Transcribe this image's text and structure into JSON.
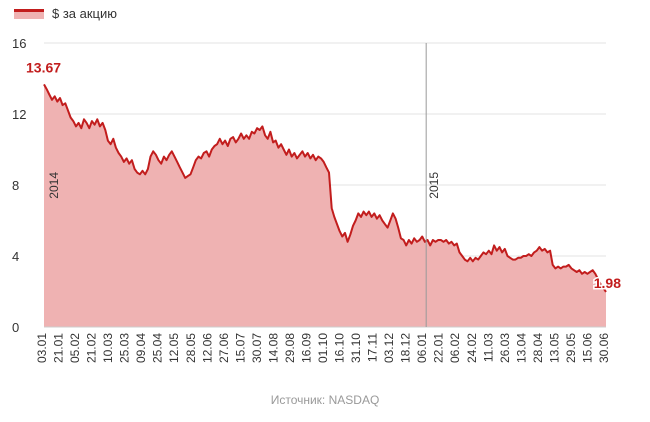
{
  "legend": {
    "label": "$ за акцию"
  },
  "source_label": "Источник: NASDAQ",
  "colors": {
    "line": "#c21d1d",
    "area": "#efb2b2",
    "grid": "#e3e3e3",
    "axis": "#333333",
    "separator": "#999999"
  },
  "chart_data": {
    "type": "area",
    "title": "",
    "xlabel": "",
    "ylabel": "",
    "ylim": [
      0,
      16
    ],
    "yticks": [
      0,
      4,
      8,
      12,
      16
    ],
    "grid": true,
    "legend_position": "top-left",
    "series": [
      {
        "name": "$ за акцию"
      }
    ],
    "x_tick_labels": [
      "03.01",
      "21.01",
      "05.02",
      "21.02",
      "10.03",
      "25.03",
      "09.04",
      "25.04",
      "12.05",
      "28.05",
      "12.06",
      "27.06",
      "15.07",
      "30.07",
      "14.08",
      "29.08",
      "16.09",
      "01.10",
      "16.10",
      "31.10",
      "17.11",
      "03.12",
      "18.12",
      "06.01",
      "22.01",
      "06.02",
      "24.02",
      "11.03",
      "26.03",
      "13.04",
      "28.04",
      "13.05",
      "29.05",
      "15.06",
      "30.06"
    ],
    "year_markers": [
      {
        "label": "2014",
        "at_tick": "03.01"
      },
      {
        "label": "2015",
        "at_tick": "06.01"
      }
    ],
    "annotations": [
      {
        "label": "13.67",
        "value": 13.67,
        "position": "start"
      },
      {
        "label": "1.98",
        "value": 1.98,
        "position": "end"
      }
    ],
    "values": [
      [
        0,
        13.67
      ],
      [
        1,
        13.4
      ],
      [
        2,
        13.1
      ],
      [
        3,
        12.8
      ],
      [
        4,
        13.0
      ],
      [
        5,
        12.7
      ],
      [
        6,
        12.9
      ],
      [
        7,
        12.5
      ],
      [
        8,
        12.6
      ],
      [
        9,
        12.2
      ],
      [
        10,
        11.8
      ],
      [
        11,
        11.6
      ],
      [
        12,
        11.3
      ],
      [
        13,
        11.5
      ],
      [
        14,
        11.2
      ],
      [
        15,
        11.7
      ],
      [
        16,
        11.5
      ],
      [
        17,
        11.2
      ],
      [
        18,
        11.6
      ],
      [
        19,
        11.4
      ],
      [
        20,
        11.7
      ],
      [
        21,
        11.3
      ],
      [
        22,
        11.5
      ],
      [
        23,
        11.1
      ],
      [
        24,
        10.5
      ],
      [
        25,
        10.3
      ],
      [
        26,
        10.6
      ],
      [
        27,
        10.1
      ],
      [
        28,
        9.8
      ],
      [
        29,
        9.6
      ],
      [
        30,
        9.3
      ],
      [
        31,
        9.5
      ],
      [
        32,
        9.2
      ],
      [
        33,
        9.4
      ],
      [
        34,
        8.9
      ],
      [
        35,
        8.7
      ],
      [
        36,
        8.6
      ],
      [
        37,
        8.8
      ],
      [
        38,
        8.6
      ],
      [
        39,
        8.9
      ],
      [
        40,
        9.6
      ],
      [
        41,
        9.9
      ],
      [
        42,
        9.7
      ],
      [
        43,
        9.4
      ],
      [
        44,
        9.2
      ],
      [
        45,
        9.6
      ],
      [
        46,
        9.4
      ],
      [
        47,
        9.7
      ],
      [
        48,
        9.9
      ],
      [
        49,
        9.6
      ],
      [
        50,
        9.3
      ],
      [
        51,
        9.0
      ],
      [
        52,
        8.7
      ],
      [
        53,
        8.4
      ],
      [
        54,
        8.5
      ],
      [
        55,
        8.6
      ],
      [
        56,
        9.0
      ],
      [
        57,
        9.4
      ],
      [
        58,
        9.6
      ],
      [
        59,
        9.5
      ],
      [
        60,
        9.8
      ],
      [
        61,
        9.9
      ],
      [
        62,
        9.6
      ],
      [
        63,
        10.0
      ],
      [
        64,
        10.2
      ],
      [
        65,
        10.3
      ],
      [
        66,
        10.6
      ],
      [
        67,
        10.3
      ],
      [
        68,
        10.5
      ],
      [
        69,
        10.2
      ],
      [
        70,
        10.6
      ],
      [
        71,
        10.7
      ],
      [
        72,
        10.4
      ],
      [
        73,
        10.6
      ],
      [
        74,
        10.9
      ],
      [
        75,
        10.6
      ],
      [
        76,
        10.8
      ],
      [
        77,
        10.6
      ],
      [
        78,
        11.0
      ],
      [
        79,
        10.9
      ],
      [
        80,
        11.2
      ],
      [
        81,
        11.1
      ],
      [
        82,
        11.3
      ],
      [
        83,
        10.8
      ],
      [
        84,
        10.6
      ],
      [
        85,
        11.0
      ],
      [
        86,
        10.4
      ],
      [
        87,
        10.5
      ],
      [
        88,
        10.1
      ],
      [
        89,
        10.3
      ],
      [
        90,
        10.0
      ],
      [
        91,
        9.7
      ],
      [
        92,
        10.0
      ],
      [
        93,
        9.6
      ],
      [
        94,
        9.8
      ],
      [
        95,
        9.5
      ],
      [
        96,
        9.7
      ],
      [
        97,
        9.9
      ],
      [
        98,
        9.6
      ],
      [
        99,
        9.8
      ],
      [
        100,
        9.5
      ],
      [
        101,
        9.7
      ],
      [
        102,
        9.4
      ],
      [
        103,
        9.6
      ],
      [
        104,
        9.5
      ],
      [
        105,
        9.3
      ],
      [
        106,
        9.0
      ],
      [
        107,
        8.7
      ],
      [
        108,
        6.7
      ],
      [
        109,
        6.2
      ],
      [
        110,
        5.8
      ],
      [
        111,
        5.4
      ],
      [
        112,
        5.1
      ],
      [
        113,
        5.3
      ],
      [
        114,
        4.8
      ],
      [
        115,
        5.2
      ],
      [
        116,
        5.7
      ],
      [
        117,
        6.0
      ],
      [
        118,
        6.4
      ],
      [
        119,
        6.2
      ],
      [
        120,
        6.5
      ],
      [
        121,
        6.3
      ],
      [
        122,
        6.5
      ],
      [
        123,
        6.2
      ],
      [
        124,
        6.4
      ],
      [
        125,
        6.1
      ],
      [
        126,
        6.3
      ],
      [
        127,
        6.0
      ],
      [
        128,
        5.8
      ],
      [
        129,
        5.6
      ],
      [
        130,
        6.0
      ],
      [
        131,
        6.4
      ],
      [
        132,
        6.1
      ],
      [
        133,
        5.6
      ],
      [
        134,
        5.0
      ],
      [
        135,
        4.9
      ],
      [
        136,
        4.6
      ],
      [
        137,
        4.9
      ],
      [
        138,
        4.7
      ],
      [
        139,
        5.0
      ],
      [
        140,
        4.8
      ],
      [
        141,
        4.9
      ],
      [
        142,
        5.1
      ],
      [
        143,
        4.8
      ],
      [
        144,
        4.9
      ],
      [
        145,
        4.6
      ],
      [
        146,
        4.9
      ],
      [
        147,
        4.8
      ],
      [
        148,
        4.9
      ],
      [
        149,
        4.9
      ],
      [
        150,
        4.8
      ],
      [
        151,
        4.9
      ],
      [
        152,
        4.7
      ],
      [
        153,
        4.8
      ],
      [
        154,
        4.6
      ],
      [
        155,
        4.7
      ],
      [
        156,
        4.2
      ],
      [
        157,
        4.0
      ],
      [
        158,
        3.8
      ],
      [
        159,
        3.7
      ],
      [
        160,
        3.9
      ],
      [
        161,
        3.7
      ],
      [
        162,
        3.9
      ],
      [
        163,
        3.8
      ],
      [
        164,
        4.0
      ],
      [
        165,
        4.2
      ],
      [
        166,
        4.1
      ],
      [
        167,
        4.3
      ],
      [
        168,
        4.1
      ],
      [
        169,
        4.6
      ],
      [
        170,
        4.3
      ],
      [
        171,
        4.5
      ],
      [
        172,
        4.2
      ],
      [
        173,
        4.4
      ],
      [
        174,
        4.0
      ],
      [
        175,
        3.9
      ],
      [
        176,
        3.8
      ],
      [
        177,
        3.8
      ],
      [
        178,
        3.9
      ],
      [
        179,
        3.9
      ],
      [
        180,
        4.0
      ],
      [
        181,
        4.0
      ],
      [
        182,
        4.1
      ],
      [
        183,
        4.0
      ],
      [
        184,
        4.2
      ],
      [
        185,
        4.3
      ],
      [
        186,
        4.5
      ],
      [
        187,
        4.3
      ],
      [
        188,
        4.4
      ],
      [
        189,
        4.2
      ],
      [
        190,
        4.3
      ],
      [
        191,
        3.5
      ],
      [
        192,
        3.3
      ],
      [
        193,
        3.4
      ],
      [
        194,
        3.3
      ],
      [
        195,
        3.4
      ],
      [
        196,
        3.4
      ],
      [
        197,
        3.5
      ],
      [
        198,
        3.3
      ],
      [
        199,
        3.2
      ],
      [
        200,
        3.1
      ],
      [
        201,
        3.2
      ],
      [
        202,
        3.0
      ],
      [
        203,
        3.1
      ],
      [
        204,
        3.0
      ],
      [
        205,
        3.1
      ],
      [
        206,
        3.2
      ],
      [
        207,
        3.0
      ],
      [
        208,
        2.7
      ],
      [
        209,
        2.4
      ],
      [
        210,
        2.2
      ],
      [
        211,
        1.98
      ]
    ]
  }
}
